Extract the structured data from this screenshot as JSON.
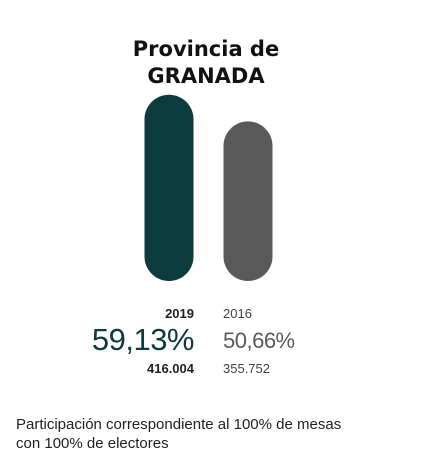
{
  "header": {
    "title_line1": "Provincia de",
    "title_line2": "GRANADA"
  },
  "chart_data": {
    "type": "bar",
    "categories": [
      "2019",
      "2016"
    ],
    "values": [
      59.13,
      50.66
    ],
    "value_labels": [
      "59,13%",
      "50,66%"
    ],
    "votes": [
      "416.004",
      "355.752"
    ],
    "ylim": [
      0,
      100
    ],
    "colors": [
      "#0b3b3f",
      "#595959"
    ]
  },
  "footnote": {
    "line1": "Participación correspondiente al 100% de mesas",
    "line2": "con 100% de electores"
  }
}
